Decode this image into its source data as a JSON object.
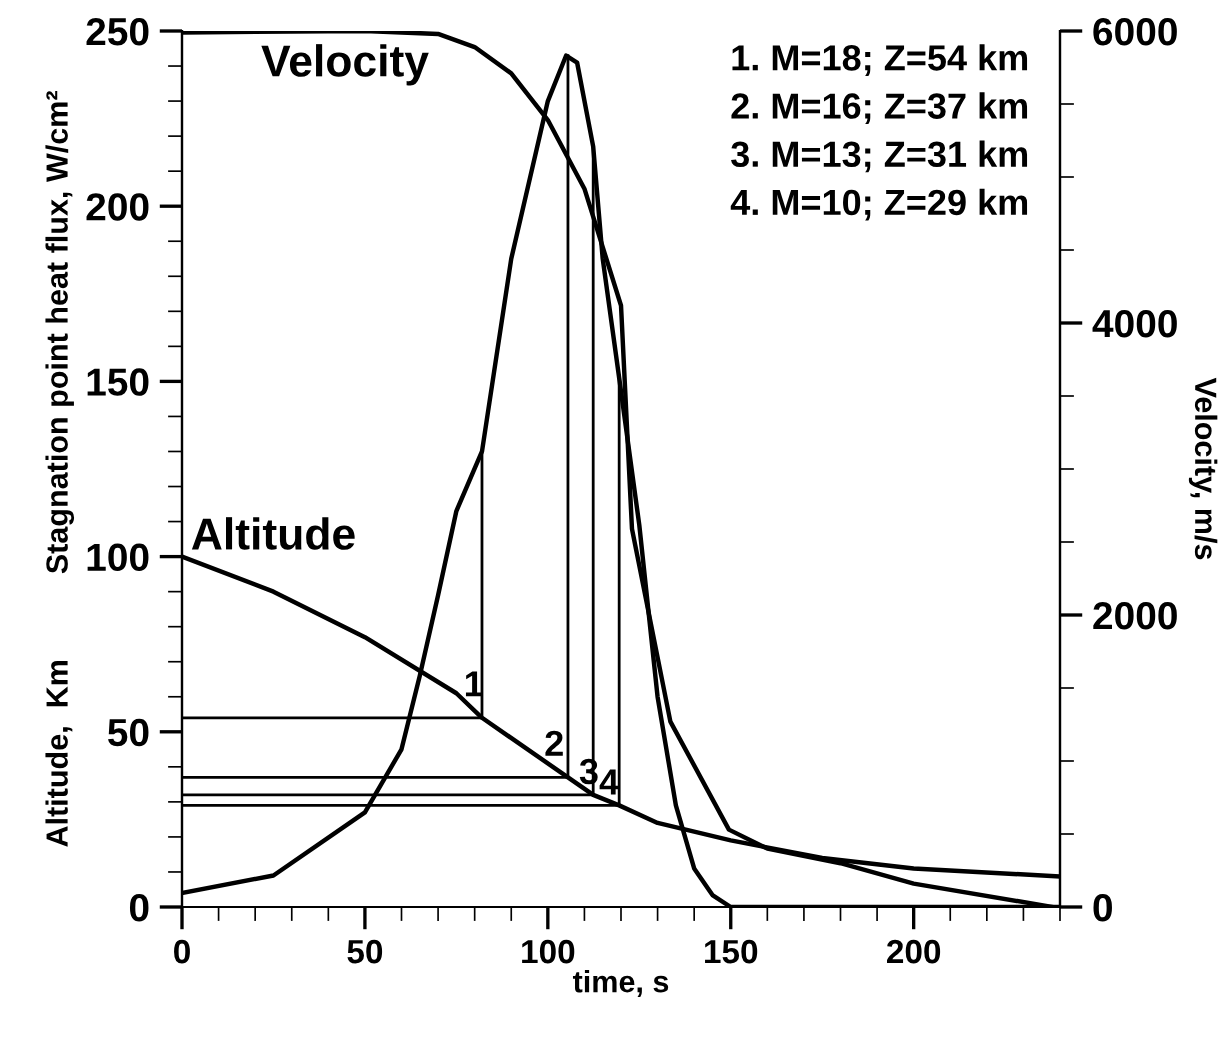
{
  "chart_data": {
    "type": "line",
    "xlabel": "time, s",
    "ylabel": "Altitude,  Km          Stagnation point heat flux, W/cm²",
    "y2label": "Velocity, m/s",
    "xlim": [
      0,
      240
    ],
    "xticks": [
      0,
      50,
      100,
      150,
      200
    ],
    "ylim": [
      0,
      250
    ],
    "yticks": [
      0,
      50,
      100,
      150,
      200,
      250
    ],
    "y2lim": [
      0,
      6000
    ],
    "y2ticks": [
      0,
      2000,
      4000,
      6000
    ],
    "grid": false,
    "legend": false,
    "marker": "none",
    "line_style": "solid",
    "series": [
      {
        "color": "#000000",
        "x": [
          0,
          25,
          50,
          75,
          82,
          105.5,
          112.4,
          119.5,
          130,
          150,
          175,
          200,
          240
        ],
        "values": [
          100,
          90,
          77,
          61,
          54,
          37,
          32,
          29,
          24,
          19,
          14,
          11,
          8.7
        ]
      },
      {
        "color": "#000000",
        "axis": "y2",
        "x": [
          0,
          50,
          70,
          80,
          90,
          100,
          110,
          120,
          123,
          133.5,
          149.5,
          160,
          180,
          200,
          238
        ],
        "values": [
          5990,
          6000,
          5980,
          5890,
          5710,
          5390,
          4920,
          4120,
          2590,
          1270,
          530,
          400,
          300,
          160,
          0
        ]
      },
      {
        "color": "#000000",
        "x": [
          0,
          25,
          50,
          60,
          65,
          70,
          75,
          82,
          90,
          100,
          105,
          108,
          112.4,
          115,
          119.5,
          125,
          130,
          135,
          140,
          145,
          150,
          240
        ],
        "values": [
          4,
          9,
          27,
          45,
          66,
          89,
          113,
          130,
          185,
          230,
          243,
          241,
          217,
          185,
          151,
          109,
          60,
          29,
          11,
          3.4,
          0,
          0
        ]
      },
      {
        "color": "#000000",
        "x": [
          0,
          82,
          82
        ],
        "values": [
          54,
          54,
          130
        ]
      },
      {
        "color": "#000000",
        "x": [
          0,
          105.5,
          105.5
        ],
        "values": [
          37,
          37,
          243
        ]
      },
      {
        "color": "#000000",
        "x": [
          0,
          112.4,
          112.4
        ],
        "values": [
          32,
          32,
          217
        ]
      },
      {
        "color": "#000000",
        "x": [
          0,
          119.5,
          119.5
        ],
        "values": [
          29,
          29,
          151
        ]
      }
    ],
    "annotations": [
      "Velocity",
      "Altitude",
      {
        "text": "1",
        "x": 77,
        "y": 58
      },
      {
        "text": "2",
        "x": 99,
        "y": 41
      },
      {
        "text": "3",
        "x": 108.5,
        "y": 33
      },
      {
        "text": "4",
        "x": 114,
        "y": 30
      },
      "1. M=18; Z=54 km",
      "2. M=16; Z=37 km",
      "3. M=13; Z=31 km",
      "4. M=10; Z=29 km"
    ]
  }
}
